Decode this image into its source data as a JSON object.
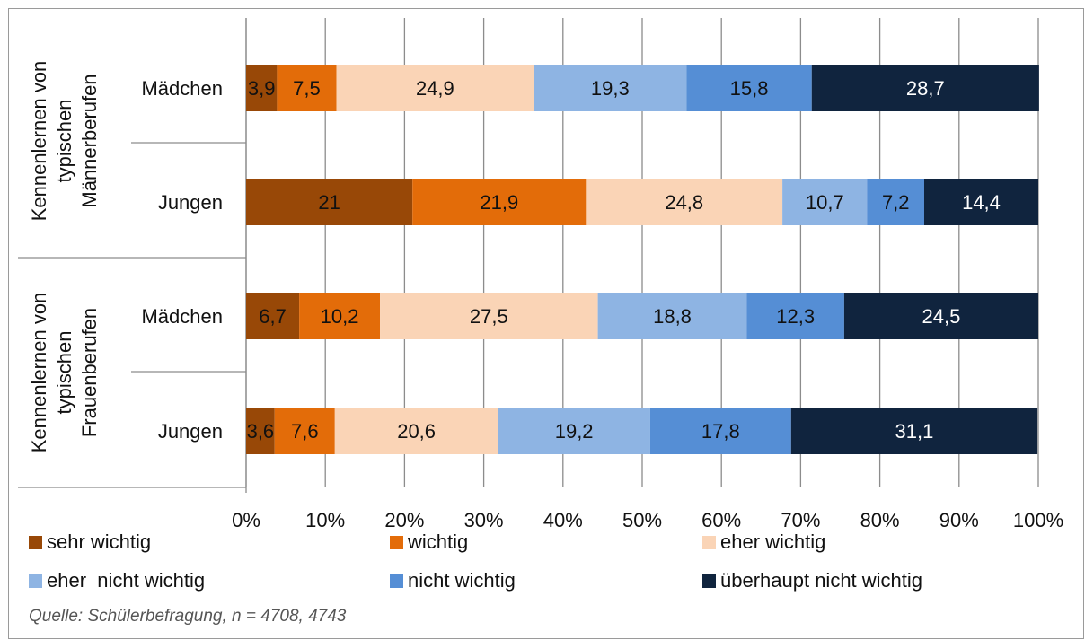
{
  "chart_data": {
    "type": "bar",
    "orientation": "horizontal",
    "stacked": "percent",
    "groups": [
      {
        "label": "Kennenlernen von typischen Männerberufen",
        "lines": [
          "Kennenlernen von",
          "typischen",
          "Männerberufen"
        ]
      },
      {
        "label": "Kennenlernen von typischen Frauenberufen",
        "lines": [
          "Kennenlernen von",
          "typischen",
          "Frauenberufen"
        ]
      }
    ],
    "categories": [
      "Mädchen",
      "Jungen",
      "Mädchen",
      "Jungen"
    ],
    "series": [
      {
        "name": "sehr wichtig",
        "color": "#984807",
        "values": [
          3.9,
          21,
          6.7,
          3.6
        ],
        "labels": [
          "3,9",
          "21",
          "6,7",
          "3,6"
        ]
      },
      {
        "name": "wichtig",
        "color": "#E36C09",
        "values": [
          7.5,
          21.9,
          10.2,
          7.6
        ],
        "labels": [
          "7,5",
          "21,9",
          "10,2",
          "7,6"
        ]
      },
      {
        "name": "eher wichtig",
        "color": "#FAD4B6",
        "values": [
          24.9,
          24.8,
          27.5,
          20.6
        ],
        "labels": [
          "24,9",
          "24,8",
          "27,5",
          "20,6"
        ]
      },
      {
        "name": "eher  nicht wichtig",
        "color": "#8EB4E3",
        "values": [
          19.3,
          10.7,
          18.8,
          19.2
        ],
        "labels": [
          "19,3",
          "10,7",
          "18,8",
          "19,2"
        ]
      },
      {
        "name": "nicht wichtig",
        "color": "#558ED5",
        "values": [
          15.8,
          7.2,
          12.3,
          17.8
        ],
        "labels": [
          "15,8",
          "7,2",
          "12,3",
          "17,8"
        ]
      },
      {
        "name": "überhaupt nicht wichtig",
        "color": "#10243E",
        "values": [
          28.7,
          14.4,
          24.5,
          31.1
        ],
        "labels": [
          "28,7",
          "14,4",
          "24,5",
          "31,1"
        ]
      }
    ],
    "xlim": [
      0,
      100
    ],
    "xticks": [
      "0%",
      "10%",
      "20%",
      "30%",
      "40%",
      "50%",
      "60%",
      "70%",
      "80%",
      "90%",
      "100%"
    ],
    "grid": "vertical",
    "legend": "bottom"
  },
  "source": "Quelle: Schülerbefragung, n = 4708,  4743"
}
